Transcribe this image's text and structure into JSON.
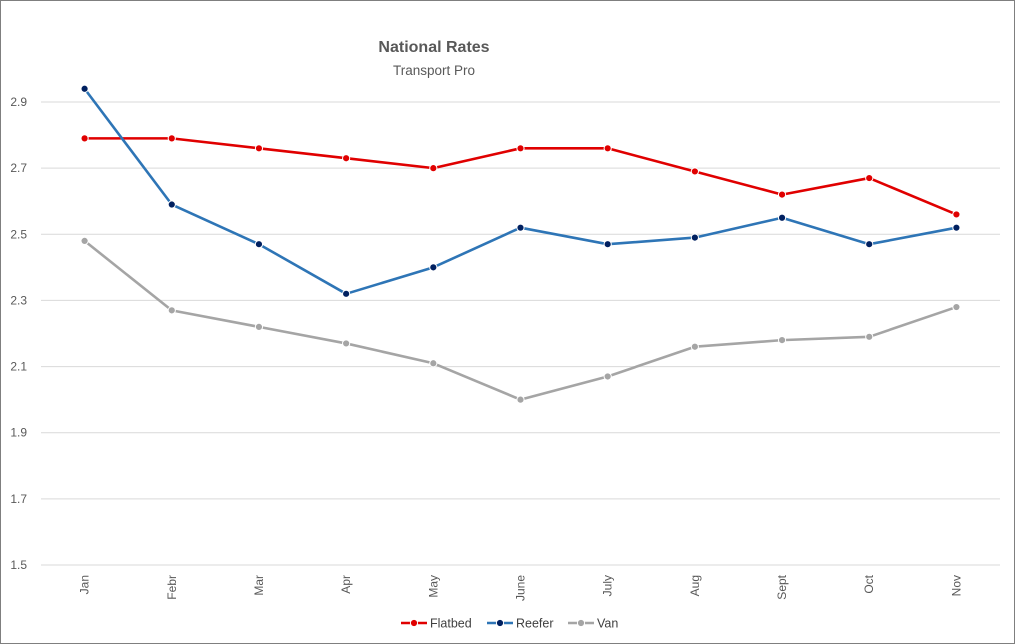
{
  "chart_data": {
    "type": "line",
    "title": "National Rates",
    "subtitle": "Transport Pro",
    "xlabel": "",
    "ylabel": "",
    "categories": [
      "Jan",
      "Febr",
      "Mar",
      "Apr",
      "May",
      "June",
      "July",
      "Aug",
      "Sept",
      "Oct",
      "Nov"
    ],
    "ylim": [
      1.5,
      2.9
    ],
    "yticks": [
      "1.5",
      "1.7",
      "1.9",
      "2.1",
      "2.3",
      "2.5",
      "2.7",
      "2.9"
    ],
    "grid": true,
    "legend_position": "bottom",
    "series": [
      {
        "name": "Flatbed",
        "color": "#e00000",
        "marker_color": "#e00000",
        "values": [
          2.79,
          2.79,
          2.76,
          2.73,
          2.7,
          2.76,
          2.76,
          2.69,
          2.62,
          2.67,
          2.56
        ]
      },
      {
        "name": "Reefer",
        "color": "#2e75b6",
        "marker_color": "#002060",
        "values": [
          2.94,
          2.59,
          2.47,
          2.32,
          2.4,
          2.52,
          2.47,
          2.49,
          2.55,
          2.47,
          2.52
        ]
      },
      {
        "name": "Van",
        "color": "#a5a5a5",
        "marker_color": "#a5a5a5",
        "values": [
          2.48,
          2.27,
          2.22,
          2.17,
          2.11,
          2.0,
          2.07,
          2.16,
          2.18,
          2.19,
          2.28
        ]
      }
    ]
  }
}
